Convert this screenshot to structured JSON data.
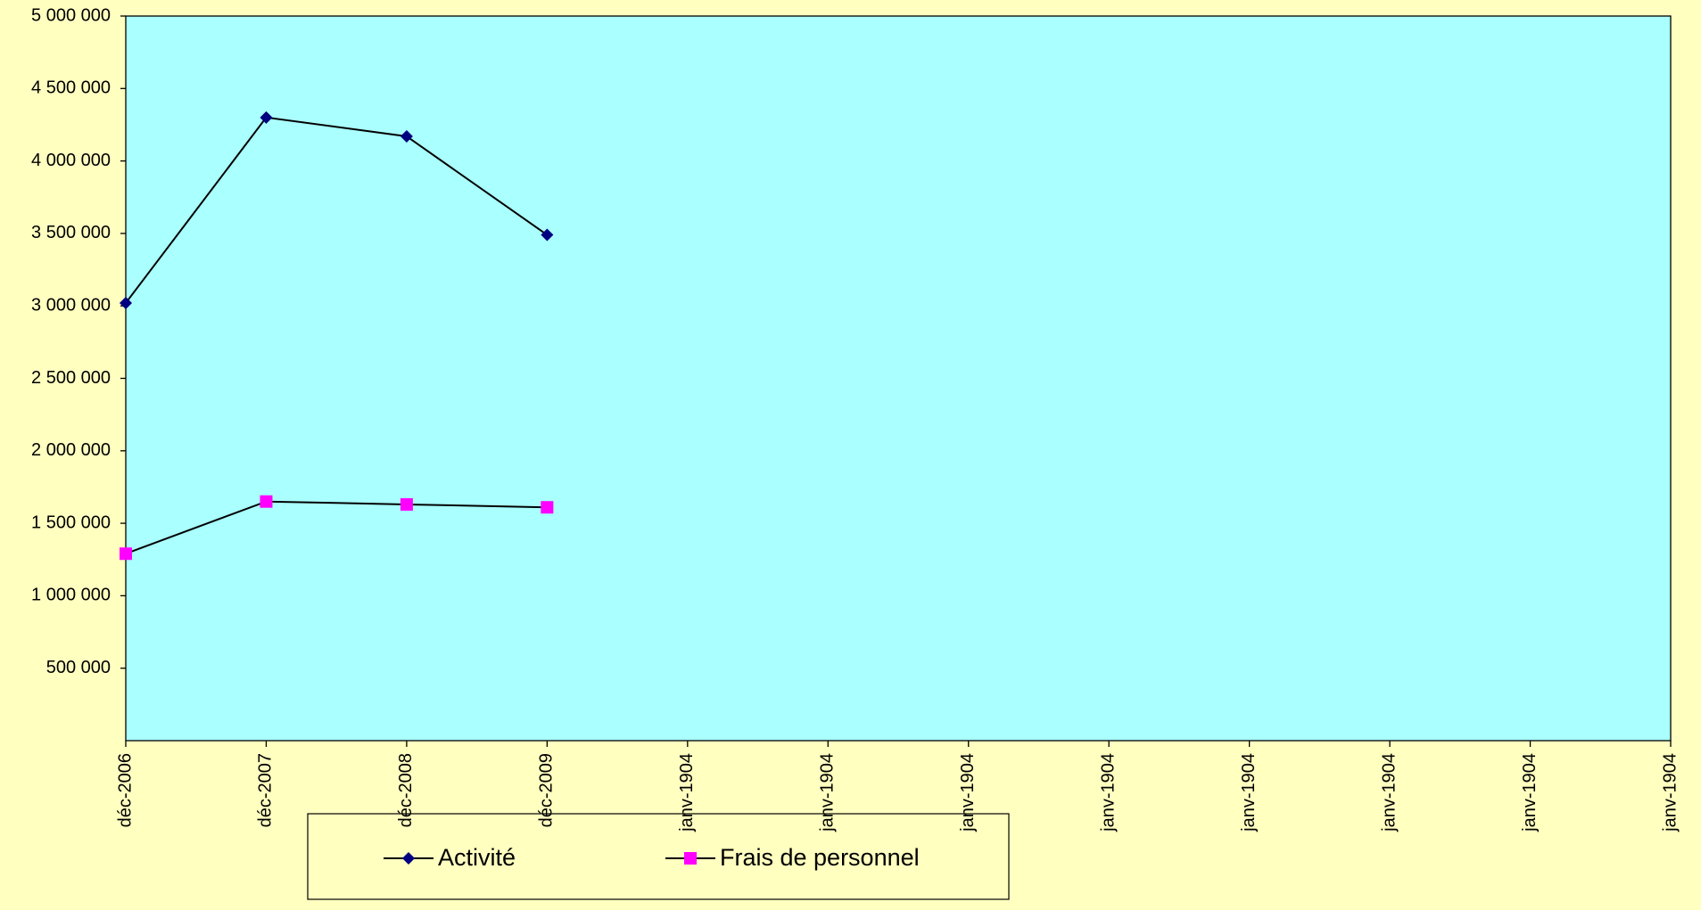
{
  "chart_data": {
    "type": "line",
    "categories": [
      "déc-2006",
      "déc-2007",
      "déc-2008",
      "déc-2009",
      "janv-1904",
      "janv-1904",
      "janv-1904",
      "janv-1904",
      "janv-1904",
      "janv-1904",
      "janv-1904",
      "janv-1904"
    ],
    "series": [
      {
        "name": "Activité",
        "color": "#000080",
        "marker": "diamond",
        "values": [
          3020000,
          4300000,
          4170000,
          3490000,
          null,
          null,
          null,
          null,
          null,
          null,
          null,
          null
        ]
      },
      {
        "name": "Frais de personnel",
        "color": "#ff00ff",
        "marker": "square",
        "values": [
          1290000,
          1650000,
          1630000,
          1610000,
          null,
          null,
          null,
          null,
          null,
          null,
          null,
          null
        ]
      }
    ],
    "ylim": [
      0,
      5000000
    ],
    "yticks": [
      {
        "value": 500000,
        "label": "500 000"
      },
      {
        "value": 1000000,
        "label": "1 000 000"
      },
      {
        "value": 1500000,
        "label": "1 500 000"
      },
      {
        "value": 2000000,
        "label": "2 000 000"
      },
      {
        "value": 2500000,
        "label": "2 500 000"
      },
      {
        "value": 3000000,
        "label": "3 000 000"
      },
      {
        "value": 3500000,
        "label": "3 500 000"
      },
      {
        "value": 4000000,
        "label": "4 000 000"
      },
      {
        "value": 4500000,
        "label": "4 500 000"
      },
      {
        "value": 5000000,
        "label": "5 000 000"
      }
    ],
    "grid": false,
    "legend": "bottom"
  }
}
